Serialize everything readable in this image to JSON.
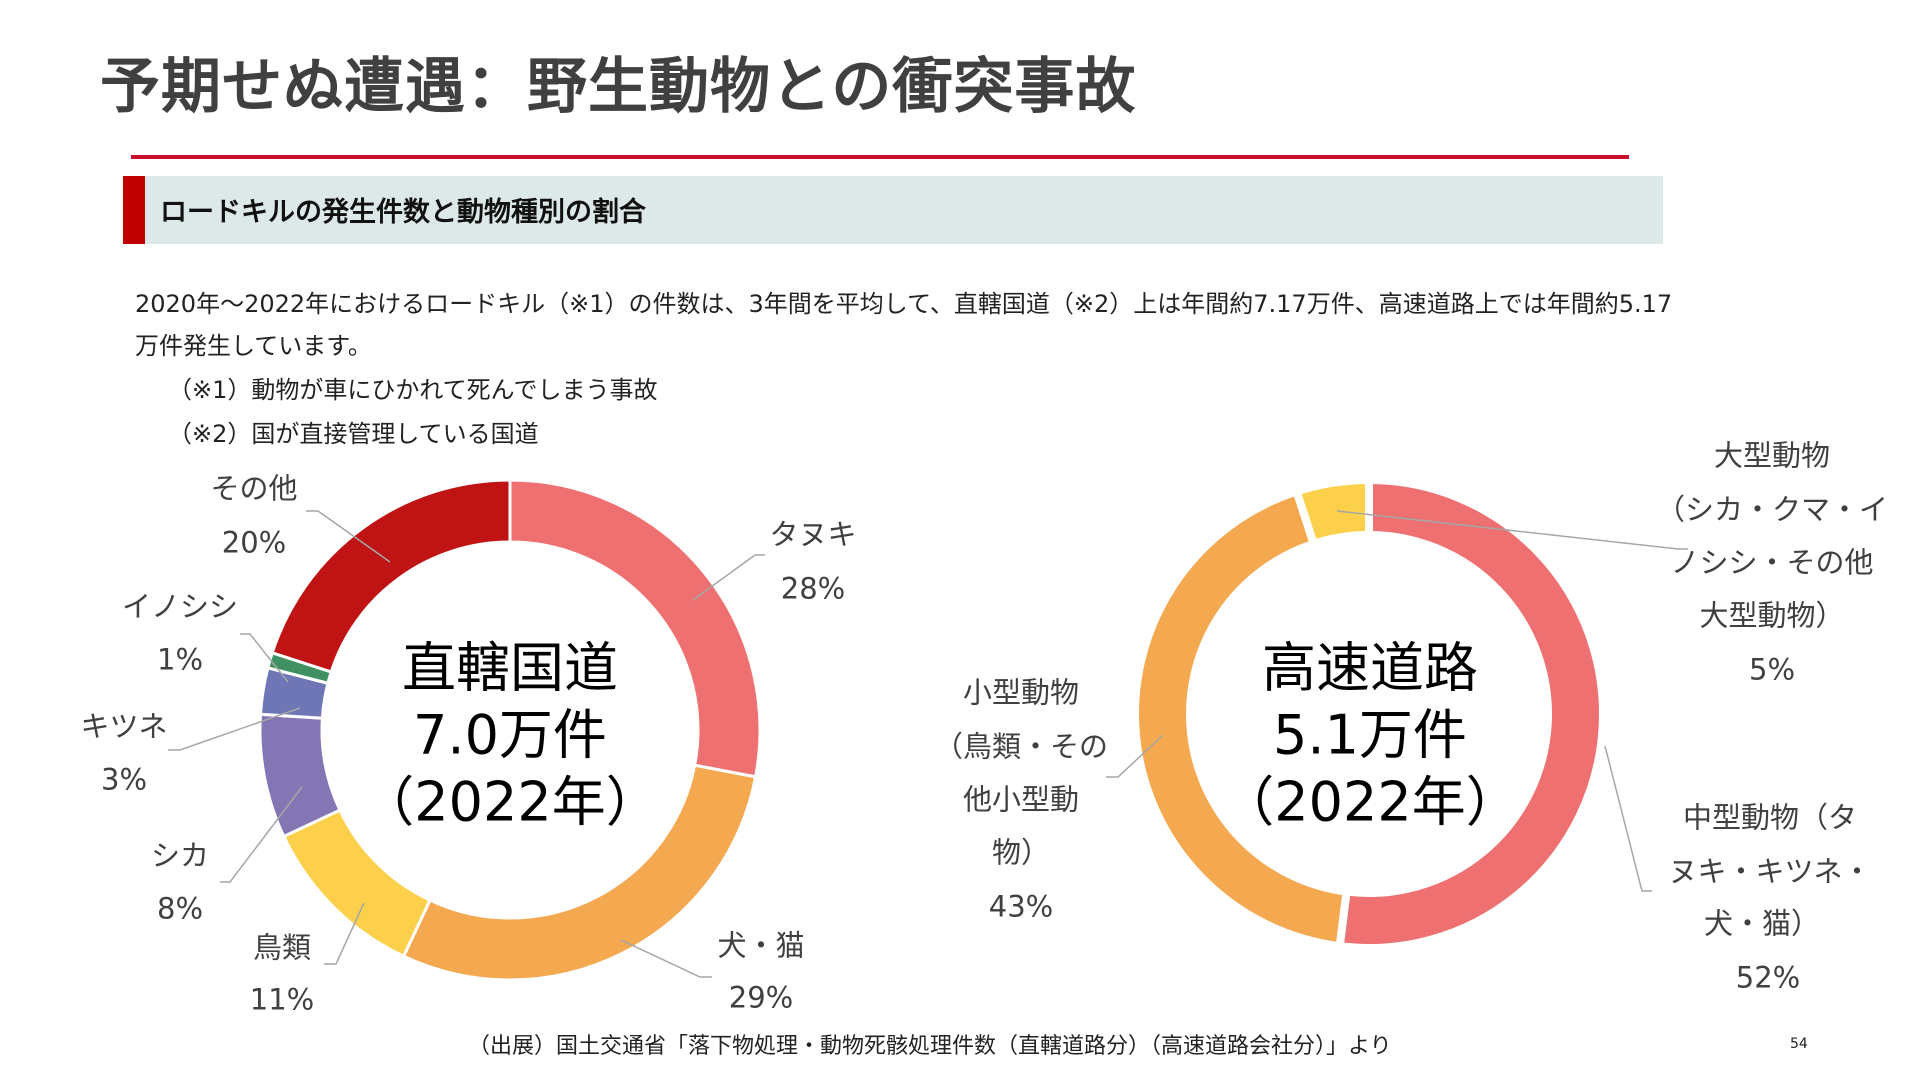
{
  "slide": {
    "title": "予期せぬ遭遇：野生動物との衝突事故",
    "section_title": "ロードキルの発生件数と動物種別の割合",
    "body_line1": "2020年～2022年におけるロードキル（※1）の件数は、3年間を平均して、直轄国道（※2）上は年間約7.17万件、高速道路上では年間約5.17",
    "body_line2": "万件発生しています。",
    "note1": "（※1）動物が車にひかれて死んでしまう事故",
    "note2": "（※2）国が直接管理している国道",
    "source": "（出展）国土交通省「落下物処理・動物死骸処理件数（直轄道路分）（高速道路会社分）」より",
    "page_number": "54"
  },
  "colors": {
    "title_rule": "#c8102e",
    "section_accent": "#c00000",
    "section_bg": "#dde9e8",
    "leader_line": "#a6a6a6"
  },
  "chart_data": [
    {
      "type": "pie",
      "variant": "donut",
      "title": "直轄国道",
      "center_label": [
        "直轄国道",
        "7.0万件",
        "（2022年）"
      ],
      "total_label": "7.0万件",
      "year": "2022年",
      "categories": [
        "タヌキ",
        "犬・猫",
        "鳥類",
        "シカ",
        "キツネ",
        "イノシシ",
        "その他"
      ],
      "values": [
        28,
        29,
        11,
        8,
        3,
        1,
        20
      ],
      "unit": "%",
      "colors": [
        "#ef7070",
        "#f4a850",
        "#fdd04b",
        "#8476b4",
        "#6f76b5",
        "#3f9161",
        "#bf1413"
      ],
      "start_angle_deg": 0,
      "direction": "clockwise",
      "labels": [
        {
          "name": "タヌキ",
          "pct": "28%"
        },
        {
          "name": "犬・猫",
          "pct": "29%"
        },
        {
          "name": "鳥類",
          "pct": "11%"
        },
        {
          "name": "シカ",
          "pct": "8%"
        },
        {
          "name": "キツネ",
          "pct": "3%"
        },
        {
          "name": "イノシシ",
          "pct": "1%"
        },
        {
          "name": "その他",
          "pct": "20%"
        }
      ]
    },
    {
      "type": "pie",
      "variant": "donut",
      "title": "高速道路",
      "center_label": [
        "高速道路",
        "5.1万件",
        "（2022年）"
      ],
      "total_label": "5.1万件",
      "year": "2022年",
      "categories": [
        "中型動物（タヌキ・キツネ・犬・猫）",
        "小型動物（鳥類・その他小型動物）",
        "大型動物（シカ・クマ・イノシシ・その他大型動物）"
      ],
      "values": [
        52,
        43,
        5
      ],
      "unit": "%",
      "colors": [
        "#ef7070",
        "#f4a850",
        "#fdd04b"
      ],
      "start_angle_deg": 0,
      "direction": "clockwise",
      "labels": [
        {
          "lines": [
            "中型動物（タ",
            "ヌキ・キツネ・",
            "犬・猫）"
          ],
          "pct": "52%"
        },
        {
          "lines": [
            "小型動物",
            "（鳥類・その",
            "他小型動",
            "物）"
          ],
          "pct": "43%"
        },
        {
          "lines": [
            "大型動物",
            "（シカ・クマ・イ",
            "ノシシ・その他",
            "大型動物）"
          ],
          "pct": "5%"
        }
      ]
    }
  ]
}
